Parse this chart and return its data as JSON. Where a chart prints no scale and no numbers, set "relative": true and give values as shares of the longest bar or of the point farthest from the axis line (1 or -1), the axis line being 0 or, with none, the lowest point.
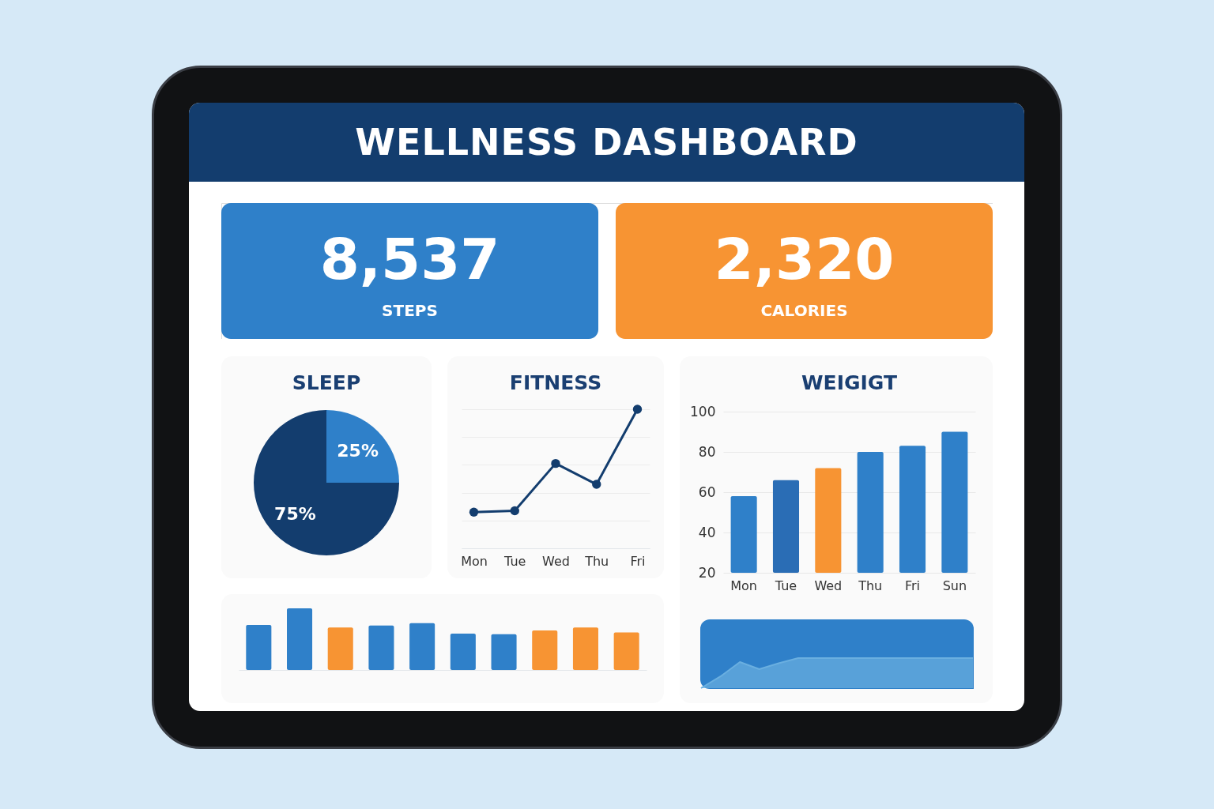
{
  "chart_data": [
    {
      "type": "other",
      "title": "WELLNESS DASHBOARD",
      "categories": [
        "STEPS",
        "CALORIES"
      ],
      "values": [
        8537,
        2320
      ],
      "colors": [
        "#2f80c9",
        "#f79433"
      ],
      "value_labels": [
        "8,537",
        "2,320"
      ]
    },
    {
      "type": "pie",
      "title": "SLEEP",
      "categories": [
        null,
        null
      ],
      "values": [
        25,
        75
      ],
      "colors": [
        "#2f80c9",
        "#133d6e"
      ],
      "value_labels": [
        "25%",
        "75%"
      ]
    },
    {
      "type": "line",
      "title": "FITNESS",
      "categories": [
        "Mon",
        "Tue",
        "Wed",
        "Thu",
        "Fri"
      ],
      "relative": true,
      "grid": true,
      "marker": "circle",
      "series": [
        {
          "color": "#133d6e",
          "values": [
            0.26,
            0.27,
            0.61,
            0.46,
            1
          ]
        }
      ]
    },
    {
      "type": "bar",
      "title": "WEIGIGT",
      "categories": [
        "Mon",
        "Tue",
        "Wed",
        "Thu",
        "Fri",
        "Sun"
      ],
      "values": [
        58,
        66,
        72,
        80,
        83,
        90
      ],
      "colors": [
        "#2f80c9",
        "#2a6db5",
        "#f79433",
        "#2f80c9",
        "#2f80c9",
        "#2f80c9"
      ],
      "ylim": [
        20,
        100
      ],
      "yticks": [
        20,
        40,
        60,
        80,
        100
      ],
      "grid": "y"
    },
    {
      "type": "bar",
      "relative": true,
      "categories": [
        null,
        null,
        null,
        null,
        null,
        null,
        null,
        null,
        null,
        null
      ],
      "values": [
        0.73,
        1,
        0.69,
        0.72,
        0.76,
        0.59,
        0.58,
        0.64,
        0.69,
        0.61
      ],
      "colors": [
        "#2f80c9",
        "#2f80c9",
        "#f79433",
        "#2f80c9",
        "#2f80c9",
        "#2f80c9",
        "#2f80c9",
        "#f79433",
        "#f79433",
        "#f79433"
      ]
    },
    {
      "type": "area",
      "relative": true,
      "categories": [
        null,
        null,
        null,
        null,
        null,
        null,
        null,
        null,
        null,
        null,
        null,
        null,
        null,
        null,
        null
      ],
      "series": [
        {
          "color": "#6aafe0",
          "values": [
            0,
            0.39,
            0.87,
            0.63,
            0.83,
            1,
            1,
            1,
            1,
            1,
            1,
            1,
            1,
            1,
            1
          ]
        }
      ]
    }
  ]
}
